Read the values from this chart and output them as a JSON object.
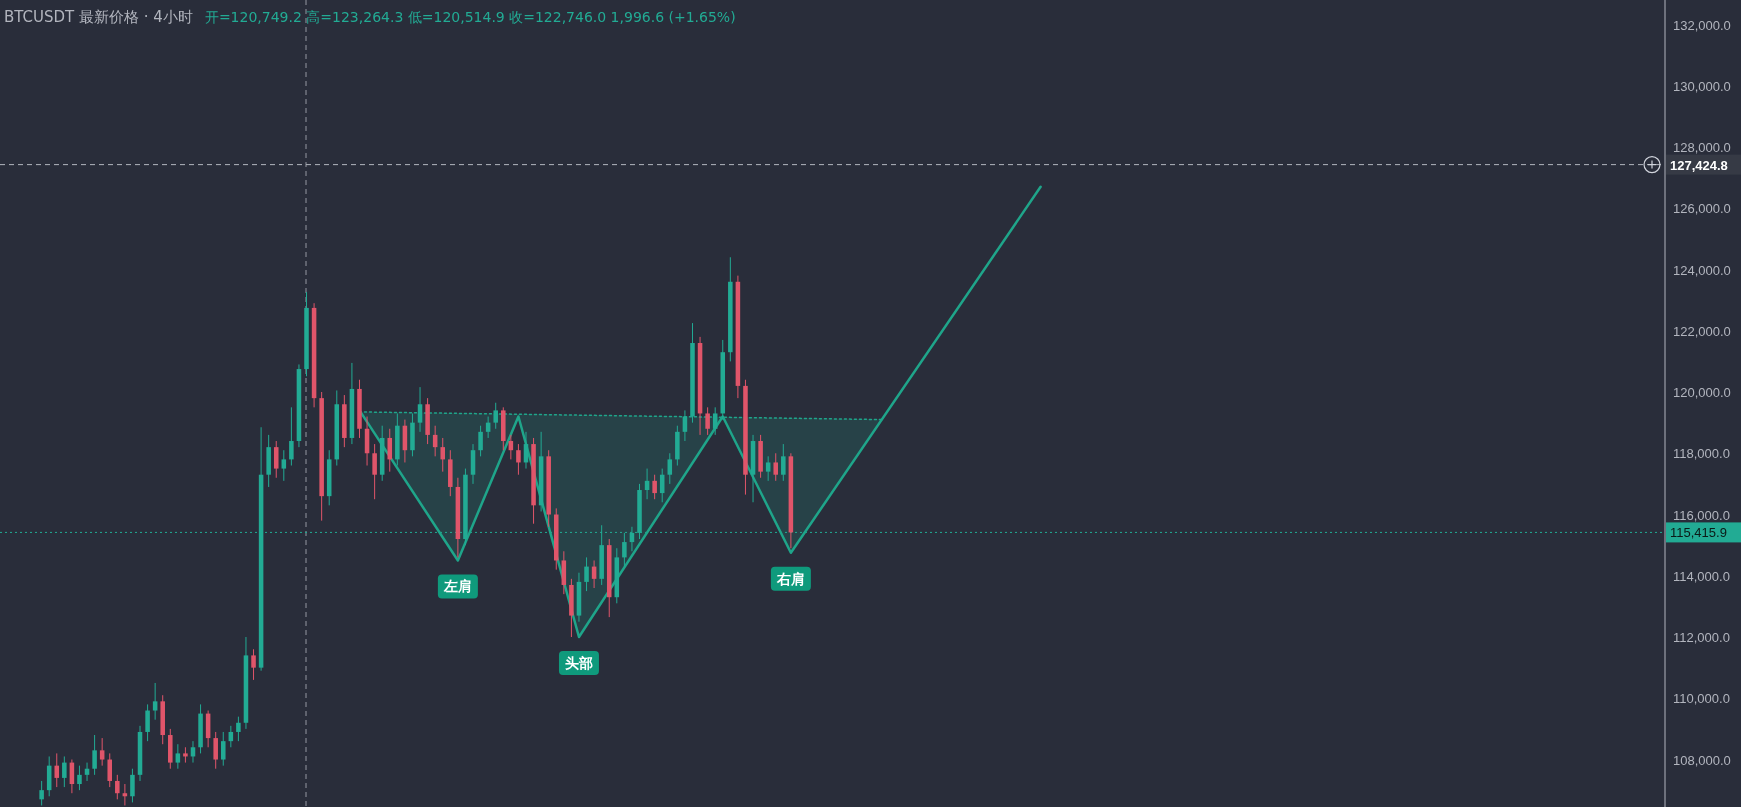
{
  "chart_data": {
    "type": "candlestick",
    "title": "BTCUSDT 最新价格 · 4小时",
    "subtitle": "开=120,749.2 高=123,264.3 低=120,514.9 收=122,746.0 1,996.6 (+1.65%)",
    "categories": [
      null,
      null,
      null,
      null,
      null,
      null,
      null,
      null,
      null,
      null,
      null,
      null,
      null,
      null,
      null,
      null,
      null,
      null,
      null,
      null,
      null,
      null,
      null,
      null,
      null,
      null,
      null,
      null,
      null,
      null,
      null,
      null,
      null,
      null,
      null,
      null,
      null,
      null,
      null,
      null,
      null,
      null,
      null,
      null,
      null,
      null,
      null,
      null,
      null,
      null,
      null,
      null,
      null,
      null,
      null,
      null,
      null,
      null,
      null,
      null,
      null,
      null,
      null,
      null,
      null,
      null,
      null,
      null,
      null,
      null,
      null,
      null,
      null,
      null,
      null,
      null,
      null,
      null,
      null,
      null,
      null,
      null,
      null,
      null,
      null,
      null,
      null,
      null,
      null,
      null,
      null,
      null,
      null,
      null,
      null,
      null,
      null,
      null,
      null,
      null,
      null,
      null,
      null,
      null,
      null,
      null,
      null,
      null,
      null,
      null,
      null,
      null,
      null,
      null,
      null,
      null,
      null,
      null,
      null,
      null,
      null,
      null,
      null,
      null,
      null,
      null,
      null,
      null,
      null,
      null,
      null,
      null,
      null,
      null,
      null,
      null,
      null,
      null,
      null,
      null,
      null,
      null,
      null,
      null,
      null,
      null,
      null,
      null,
      null,
      null,
      null,
      null,
      null,
      null,
      null,
      null,
      null,
      null,
      null,
      null,
      null,
      null,
      null,
      null,
      null,
      null,
      null,
      null,
      null,
      null,
      null,
      null,
      null,
      null,
      null,
      null,
      null,
      null,
      null,
      null,
      null,
      null,
      null,
      null,
      null,
      null,
      null,
      null,
      null,
      null,
      null,
      null,
      null,
      null,
      null,
      null,
      null,
      null,
      null,
      null,
      null,
      null,
      null,
      null,
      null,
      null,
      null,
      null,
      null,
      null,
      null,
      null,
      null,
      null,
      null,
      null,
      null,
      null,
      null,
      null
    ],
    "ohlc": [
      null,
      null,
      null,
      null,
      null,
      [
        106700,
        107300,
        106500,
        107000
      ],
      [
        107000,
        108100,
        106800,
        107800
      ],
      [
        107800,
        108200,
        107100,
        107400
      ],
      [
        107400,
        108100,
        107100,
        107900
      ],
      [
        107900,
        108000,
        106900,
        107200
      ],
      [
        107200,
        107800,
        107000,
        107500
      ],
      [
        107500,
        107900,
        107300,
        107700
      ],
      [
        107700,
        108800,
        107500,
        108300
      ],
      [
        108300,
        108700,
        107800,
        108000
      ],
      [
        108000,
        108200,
        107100,
        107300
      ],
      [
        107300,
        107500,
        106700,
        106900
      ],
      [
        106900,
        107200,
        106500,
        106800
      ],
      [
        106800,
        107700,
        106600,
        107500
      ],
      [
        107500,
        109100,
        107300,
        108900
      ],
      [
        108900,
        109800,
        108600,
        109600
      ],
      [
        109600,
        110500,
        109300,
        109900
      ],
      [
        109900,
        110100,
        108500,
        108800
      ],
      [
        108800,
        109000,
        107700,
        107900
      ],
      [
        107900,
        108500,
        107700,
        108200
      ],
      [
        108200,
        108400,
        107900,
        108100
      ],
      [
        108100,
        108600,
        107900,
        108400
      ],
      [
        108400,
        109800,
        108200,
        109500
      ],
      [
        109500,
        109600,
        108400,
        108700
      ],
      [
        108700,
        108900,
        107700,
        108000
      ],
      [
        108000,
        108900,
        107800,
        108600
      ],
      [
        108600,
        109100,
        108400,
        108900
      ],
      [
        108900,
        109400,
        108600,
        109200
      ],
      [
        109200,
        112000,
        109000,
        111400
      ],
      [
        111400,
        111600,
        110600,
        111000
      ],
      [
        111000,
        118850,
        110900,
        117300
      ],
      [
        117300,
        118600,
        116900,
        118200
      ],
      [
        118200,
        118400,
        117200,
        117500
      ],
      [
        117500,
        118100,
        117100,
        117800
      ],
      [
        117800,
        119500,
        117600,
        118400
      ],
      [
        118400,
        120900,
        118200,
        120749.2
      ],
      [
        120749.2,
        123264.3,
        120514.9,
        122746.0
      ],
      [
        122746.0,
        122900,
        119500,
        119800
      ],
      [
        119800,
        120000,
        115800,
        116600
      ],
      [
        116600,
        118100,
        116300,
        117800
      ],
      [
        117800,
        120050,
        117600,
        119600
      ],
      [
        119600,
        119900,
        118200,
        118500
      ],
      [
        118500,
        120950,
        118300,
        120100
      ],
      [
        120100,
        120400,
        118500,
        118800
      ],
      [
        118800,
        119200,
        117600,
        118000
      ],
      [
        118000,
        118300,
        116500,
        117300
      ],
      [
        117300,
        118900,
        117100,
        118500
      ],
      [
        118500,
        118800,
        117400,
        117800
      ],
      [
        117800,
        119300,
        117600,
        118900
      ],
      [
        118900,
        119100,
        117700,
        118100
      ],
      [
        118100,
        119300,
        117900,
        119000
      ],
      [
        119000,
        120160,
        118700,
        119600
      ],
      [
        119600,
        119800,
        118300,
        118600
      ],
      [
        118600,
        118900,
        117900,
        118200
      ],
      [
        118200,
        118500,
        117400,
        117800
      ],
      [
        117800,
        118100,
        116600,
        116900
      ],
      [
        116900,
        117200,
        114600,
        115200
      ],
      [
        115200,
        117500,
        115000,
        117300
      ],
      [
        117300,
        118300,
        117000,
        118100
      ],
      [
        118100,
        118900,
        117900,
        118700
      ],
      [
        118700,
        119200,
        118500,
        119000
      ],
      [
        119000,
        119650,
        118800,
        119400
      ],
      [
        119400,
        119500,
        118100,
        118400
      ],
      [
        118400,
        118600,
        117800,
        118100
      ],
      [
        118100,
        118300,
        117300,
        117700
      ],
      [
        117700,
        118700,
        117500,
        118300
      ],
      [
        118300,
        118500,
        115700,
        116300
      ],
      [
        116300,
        118700,
        116100,
        117900
      ],
      [
        117900,
        118100,
        115600,
        116000
      ],
      [
        116000,
        116200,
        114200,
        114500
      ],
      [
        114500,
        114800,
        113400,
        113700
      ],
      [
        113700,
        113900,
        112000,
        112700
      ],
      [
        112700,
        114100,
        112500,
        113800
      ],
      [
        113800,
        114600,
        113500,
        114300
      ],
      [
        114300,
        114500,
        113600,
        113900
      ],
      [
        113900,
        115650,
        113700,
        115000
      ],
      [
        115000,
        115200,
        112650,
        113300
      ],
      [
        113300,
        114900,
        113100,
        114600
      ],
      [
        114600,
        115400,
        114300,
        115100
      ],
      [
        115100,
        115600,
        114800,
        115400
      ],
      [
        115400,
        117000,
        115200,
        116800
      ],
      [
        116800,
        117500,
        116500,
        117100
      ],
      [
        117100,
        117300,
        116500,
        116700
      ],
      [
        116700,
        117500,
        116400,
        117300
      ],
      [
        117300,
        118000,
        117000,
        117800
      ],
      [
        117800,
        118900,
        117600,
        118700
      ],
      [
        118700,
        119400,
        118400,
        119200
      ],
      [
        119200,
        122250,
        119000,
        121600
      ],
      [
        121600,
        121800,
        118600,
        119300
      ],
      [
        119300,
        119500,
        118600,
        118800
      ],
      [
        118800,
        119500,
        118600,
        119300
      ],
      [
        119300,
        121700,
        119100,
        121300
      ],
      [
        121300,
        124400,
        121000,
        123600
      ],
      [
        123600,
        123800,
        119800,
        120200
      ],
      [
        120200,
        120400,
        116650,
        117300
      ],
      [
        117300,
        118600,
        116400,
        118400
      ],
      [
        118400,
        118600,
        117200,
        117400
      ],
      [
        117400,
        117900,
        117100,
        117700
      ],
      [
        117700,
        118000,
        117100,
        117300
      ],
      [
        117300,
        118300,
        117100,
        117900
      ],
      [
        117900,
        118000,
        114900,
        115415.9
      ],
      null,
      null,
      null,
      null,
      null,
      null,
      null,
      null,
      null,
      null,
      null,
      null,
      null,
      null,
      null,
      null,
      null,
      null,
      null,
      null,
      null,
      null,
      null,
      null,
      null,
      null,
      null,
      null,
      null,
      null,
      null,
      null,
      null,
      null,
      null,
      null,
      null,
      null,
      null,
      null,
      null,
      null,
      null,
      null,
      null,
      null,
      null,
      null,
      null,
      null,
      null,
      null,
      null,
      null,
      null,
      null,
      null,
      null,
      null,
      null,
      null,
      null,
      null,
      null,
      null,
      null,
      null,
      null,
      null,
      null,
      null,
      null,
      null,
      null,
      null,
      null,
      null,
      null,
      null,
      null,
      null,
      null,
      null,
      null,
      null,
      null,
      null,
      null,
      null,
      null,
      null,
      null,
      null,
      null,
      null,
      null,
      null,
      null,
      null,
      null,
      null,
      null,
      null,
      null,
      null,
      null,
      null,
      null,
      null,
      null,
      null,
      null,
      null,
      null,
      null
    ],
    "series": [
      {
        "type": "line",
        "color": "#1fa58a",
        "values": [
          null,
          null,
          null,
          null,
          null,
          null,
          null,
          null,
          null,
          null,
          null,
          null,
          null,
          null,
          null,
          null,
          null,
          null,
          null,
          null,
          null,
          null,
          null,
          null,
          null,
          null,
          null,
          null,
          null,
          null,
          null,
          null,
          null,
          null,
          null,
          null,
          null,
          null,
          null,
          null,
          null,
          null,
          null,
          null,
          null,
          null,
          null,
          119400,
          null,
          null,
          null,
          null,
          null,
          null,
          null,
          null,
          null,
          null,
          null,
          null,
          114500,
          null,
          null,
          null,
          null,
          null,
          null,
          null,
          119200,
          null,
          null,
          null,
          null,
          null,
          null,
          null,
          112000,
          null,
          null,
          null,
          null,
          null,
          null,
          null,
          null,
          null,
          null,
          null,
          null,
          null,
          null,
          null,
          null,
          null,
          null,
          119200,
          null,
          null,
          null,
          null,
          null,
          null,
          null,
          null,
          114750,
          null,
          null,
          null,
          null,
          null,
          null,
          null,
          null,
          null,
          null,
          null,
          null,
          null,
          null,
          null,
          null,
          null,
          null,
          null,
          null,
          null,
          null,
          null,
          null,
          null,
          null,
          null,
          null,
          null,
          null,
          null,
          null,
          126700,
          null,
          null,
          null,
          null,
          null,
          null,
          null,
          null,
          null,
          null,
          null,
          null,
          null,
          null,
          null,
          null,
          null,
          null,
          null,
          null,
          null,
          null,
          null,
          null,
          null,
          null,
          null,
          null,
          null,
          null,
          null,
          null,
          null,
          null,
          null,
          null,
          null,
          null,
          null,
          null,
          null,
          null,
          null,
          null,
          null,
          null,
          null,
          null,
          null,
          null,
          null,
          null,
          null,
          null,
          null,
          null,
          null,
          null,
          null,
          null,
          null,
          null,
          null,
          null,
          null,
          null,
          null,
          null,
          null,
          null,
          null,
          null,
          null,
          null,
          null,
          null,
          null,
          null,
          null,
          null,
          null,
          null
        ],
        "value_labels": [
          null,
          null,
          null,
          null,
          null,
          null,
          null,
          null,
          null,
          null,
          null,
          null,
          null,
          null,
          null,
          null,
          null,
          null,
          null,
          null,
          null,
          null,
          null,
          null,
          null,
          null,
          null,
          null,
          null,
          null,
          null,
          null,
          null,
          null,
          null,
          null,
          null,
          null,
          null,
          null,
          null,
          null,
          null,
          null,
          null,
          null,
          null,
          null,
          null,
          null,
          null,
          null,
          null,
          null,
          null,
          null,
          null,
          null,
          null,
          null,
          "左肩",
          null,
          null,
          null,
          null,
          null,
          null,
          null,
          null,
          null,
          null,
          null,
          null,
          null,
          null,
          null,
          "头部",
          null,
          null,
          null,
          null,
          null,
          null,
          null,
          null,
          null,
          null,
          null,
          null,
          null,
          null,
          null,
          null,
          null,
          null,
          null,
          null,
          null,
          null,
          null,
          null,
          null,
          null,
          null,
          "右肩",
          null,
          null,
          null,
          null,
          null,
          null,
          null,
          null,
          null,
          null,
          null,
          null,
          null,
          null,
          null,
          null,
          null,
          null,
          null,
          null,
          null,
          null,
          null,
          null,
          null,
          null,
          null,
          null,
          null,
          null,
          null,
          null,
          null,
          null,
          null,
          null,
          null,
          null,
          null,
          null,
          null,
          null,
          null,
          null,
          null,
          null,
          null,
          null,
          null,
          null,
          null,
          null,
          null,
          null,
          null,
          null,
          null,
          null,
          null,
          null,
          null,
          null,
          null,
          null,
          null,
          null,
          null,
          null,
          null,
          null,
          null,
          null,
          null,
          null,
          null,
          null,
          null,
          null,
          null,
          null,
          null,
          null,
          null,
          null,
          null,
          null,
          null,
          null,
          null,
          null,
          null,
          null,
          null,
          null,
          null,
          null,
          null,
          null,
          null,
          null,
          null,
          null,
          null,
          null,
          null,
          null,
          null,
          null,
          null,
          null,
          null,
          null,
          null,
          null,
          null
        ]
      },
      {
        "type": "line",
        "color": "#1fa58a",
        "line_style": "dotted",
        "values": [
          null,
          null,
          null,
          null,
          null,
          null,
          null,
          null,
          null,
          null,
          null,
          null,
          null,
          null,
          null,
          null,
          null,
          null,
          null,
          null,
          null,
          null,
          null,
          null,
          null,
          null,
          null,
          null,
          null,
          null,
          null,
          null,
          null,
          null,
          null,
          null,
          null,
          null,
          null,
          null,
          null,
          null,
          null,
          null,
          null,
          null,
          null,
          119350,
          null,
          null,
          null,
          null,
          null,
          null,
          null,
          null,
          null,
          null,
          null,
          null,
          null,
          null,
          null,
          null,
          null,
          null,
          null,
          null,
          null,
          null,
          null,
          null,
          null,
          null,
          null,
          null,
          null,
          null,
          null,
          null,
          null,
          null,
          null,
          null,
          null,
          null,
          null,
          null,
          null,
          null,
          null,
          null,
          null,
          null,
          null,
          null,
          null,
          null,
          null,
          null,
          null,
          null,
          null,
          null,
          null,
          null,
          null,
          null,
          null,
          null,
          null,
          null,
          null,
          null,
          null,
          null,
          119100,
          null,
          null,
          null,
          null,
          null,
          null,
          null,
          null,
          null,
          null,
          null,
          null,
          null,
          null,
          null,
          null,
          null,
          null,
          null,
          null,
          null,
          null,
          null,
          null,
          null,
          null,
          null,
          null,
          null,
          null,
          null,
          null,
          null,
          null,
          null,
          null,
          null,
          null,
          null,
          null,
          null,
          null,
          null,
          null,
          null,
          null,
          null,
          null,
          null,
          null,
          null,
          null,
          null,
          null,
          null,
          null,
          null,
          null,
          null,
          null,
          null,
          null,
          null,
          null,
          null,
          null,
          null,
          null,
          null,
          null,
          null,
          null,
          null,
          null,
          null,
          null,
          null,
          null,
          null,
          null,
          null,
          null,
          null,
          null,
          null,
          null,
          null,
          null,
          null,
          null,
          null,
          null,
          null,
          null,
          null,
          null,
          null,
          null,
          null,
          null,
          null,
          null,
          null
        ]
      }
    ],
    "ylim": [
      106450,
      132800
    ],
    "yticks": [
      {
        "value": 108000,
        "label": "108,000.0"
      },
      {
        "value": 110000,
        "label": "110,000.0"
      },
      {
        "value": 112000,
        "label": "112,000.0"
      },
      {
        "value": 114000,
        "label": "114,000.0"
      },
      {
        "value": 116000,
        "label": "116,000.0"
      },
      {
        "value": 118000,
        "label": "118,000.0"
      },
      {
        "value": 120000,
        "label": "120,000.0"
      },
      {
        "value": 122000,
        "label": "122,000.0"
      },
      {
        "value": 124000,
        "label": "124,000.0"
      },
      {
        "value": 126000,
        "label": "126,000.0"
      },
      {
        "value": 128000,
        "label": "128,000.0"
      },
      {
        "value": 130000,
        "label": "130,000.0"
      },
      {
        "value": 132000,
        "label": "132,000.0"
      }
    ],
    "tick_labels": "y",
    "ref_lines": [
      {
        "axis": "y",
        "value": 127424.8,
        "label": "127,424.8",
        "color": "#b2b5be",
        "line_style": "dashed"
      },
      {
        "axis": "y",
        "value": 115415.9,
        "label": "115,415.9",
        "color": "#22ab94",
        "line_style": "dotted"
      }
    ]
  }
}
